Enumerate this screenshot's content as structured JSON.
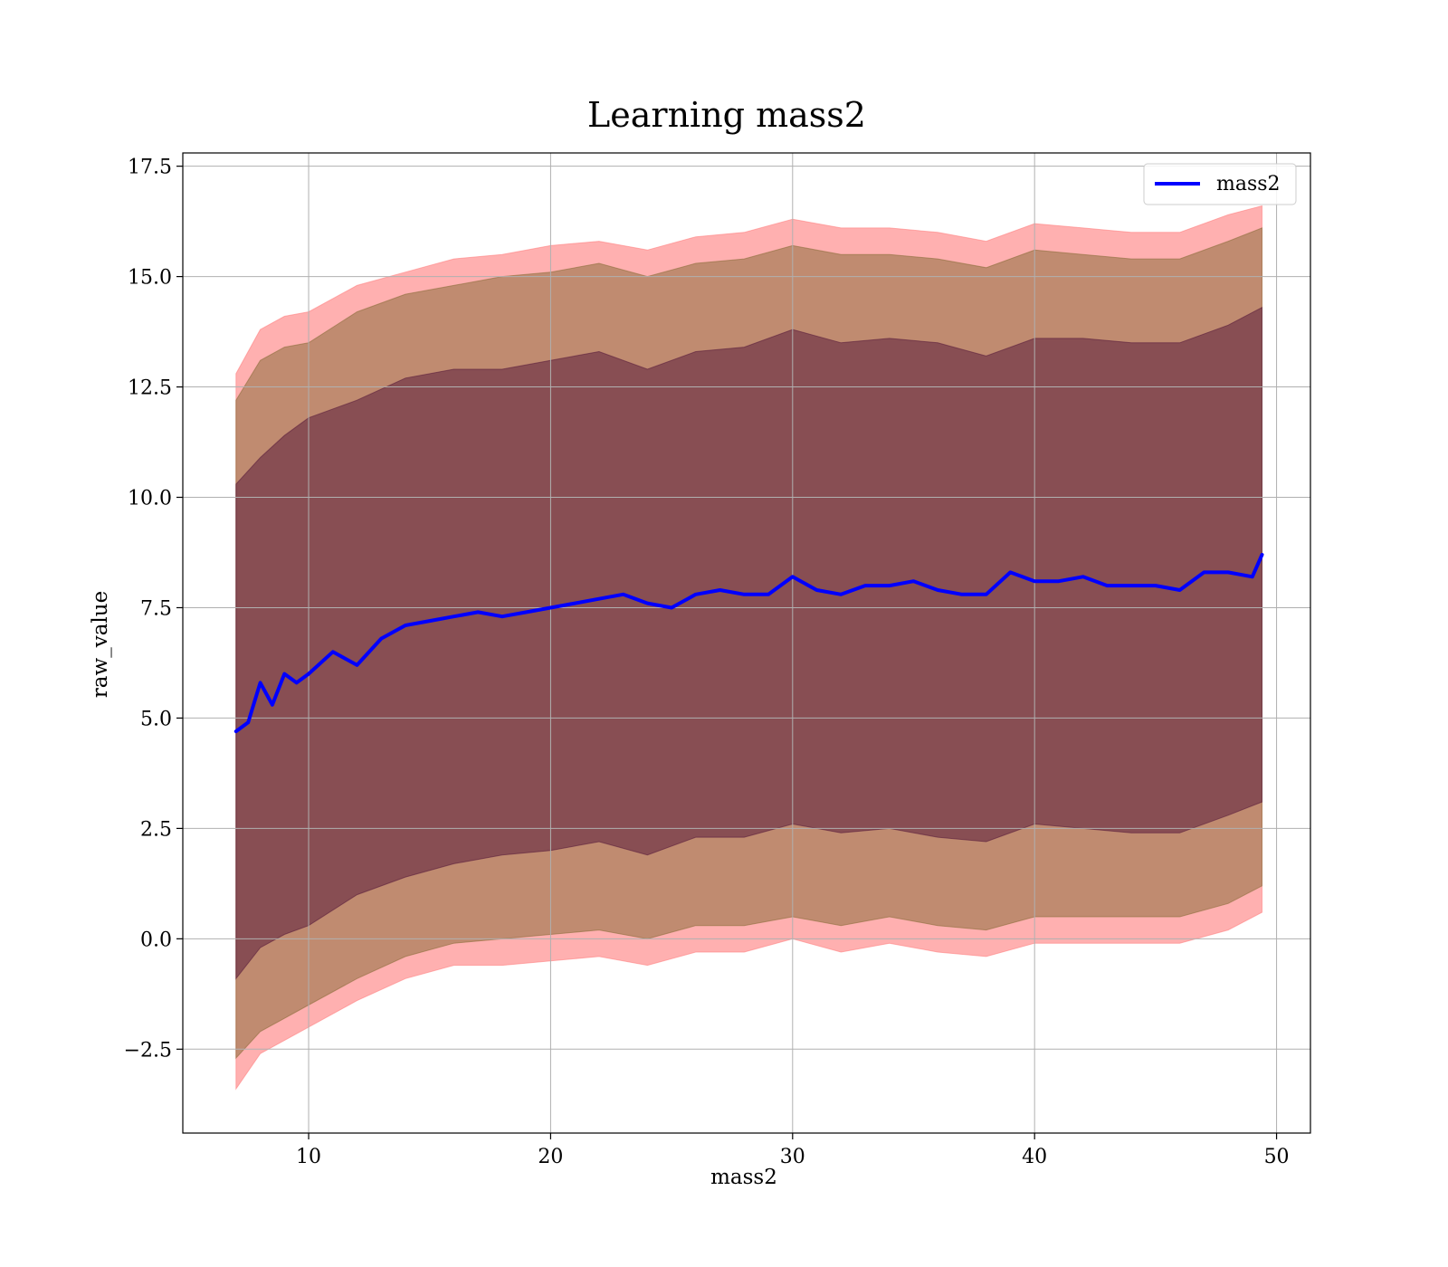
{
  "chart_data": {
    "type": "line",
    "title": "Learning mass2",
    "xlabel": "mass2",
    "ylabel": "raw_value",
    "xlim": [
      4.8,
      51.4
    ],
    "ylim": [
      -4.4,
      17.8
    ],
    "xticks": [
      10,
      20,
      30,
      40,
      50
    ],
    "yticks": [
      -2.5,
      0.0,
      2.5,
      5.0,
      7.5,
      10.0,
      12.5,
      15.0,
      17.5
    ],
    "xtick_labels": [
      "10",
      "20",
      "30",
      "40",
      "50"
    ],
    "ytick_labels": [
      "−2.5",
      "0.0",
      "2.5",
      "5.0",
      "7.5",
      "10.0",
      "12.5",
      "15.0",
      "17.5"
    ],
    "grid": true,
    "legend": {
      "placement": "top-right",
      "entries": [
        "mass2"
      ]
    },
    "colors": {
      "line": "#0000ff",
      "band_outer": "#ff8080",
      "band_middle": "#8c6e3c",
      "band_inner": "#5a1e3c"
    },
    "series": [
      {
        "name": "mass2",
        "x": [
          7.0,
          7.5,
          8.0,
          8.5,
          9.0,
          9.5,
          10.0,
          11.0,
          12.0,
          13.0,
          14.0,
          15.0,
          16.0,
          17.0,
          18.0,
          19.0,
          20.0,
          21.0,
          22.0,
          23.0,
          24.0,
          25.0,
          26.0,
          27.0,
          28.0,
          29.0,
          30.0,
          31.0,
          32.0,
          33.0,
          34.0,
          35.0,
          36.0,
          37.0,
          38.0,
          39.0,
          40.0,
          41.0,
          42.0,
          43.0,
          44.0,
          45.0,
          46.0,
          47.0,
          48.0,
          49.0,
          49.4
        ],
        "y": [
          4.7,
          4.9,
          5.8,
          5.3,
          6.0,
          5.8,
          6.0,
          6.5,
          6.2,
          6.8,
          7.1,
          7.2,
          7.3,
          7.4,
          7.3,
          7.4,
          7.5,
          7.6,
          7.7,
          7.8,
          7.6,
          7.5,
          7.8,
          7.9,
          7.8,
          7.8,
          8.2,
          7.9,
          7.8,
          8.0,
          8.0,
          8.1,
          7.9,
          7.8,
          7.8,
          8.3,
          8.1,
          8.1,
          8.2,
          8.0,
          8.0,
          8.0,
          7.9,
          8.3,
          8.3,
          8.2,
          8.7
        ]
      }
    ],
    "bands": [
      {
        "x": [
          7.0,
          8.0,
          9.0,
          10.0,
          12.0,
          14.0,
          16.0,
          18.0,
          20.0,
          22.0,
          24.0,
          26.0,
          28.0,
          30.0,
          32.0,
          34.0,
          36.0,
          38.0,
          40.0,
          42.0,
          44.0,
          46.0,
          48.0,
          49.4
        ],
        "lower": [
          -3.4,
          -2.6,
          -2.3,
          -2.0,
          -1.4,
          -0.9,
          -0.6,
          -0.6,
          -0.5,
          -0.4,
          -0.6,
          -0.3,
          -0.3,
          0.0,
          -0.3,
          -0.1,
          -0.3,
          -0.4,
          -0.1,
          -0.1,
          -0.1,
          -0.1,
          0.2,
          0.6
        ],
        "upper": [
          12.8,
          13.8,
          14.1,
          14.2,
          14.8,
          15.1,
          15.4,
          15.5,
          15.7,
          15.8,
          15.6,
          15.9,
          16.0,
          16.3,
          16.1,
          16.1,
          16.0,
          15.8,
          16.2,
          16.1,
          16.0,
          16.0,
          16.4,
          16.6
        ]
      },
      {
        "x": [
          7.0,
          8.0,
          9.0,
          10.0,
          12.0,
          14.0,
          16.0,
          18.0,
          20.0,
          22.0,
          24.0,
          26.0,
          28.0,
          30.0,
          32.0,
          34.0,
          36.0,
          38.0,
          40.0,
          42.0,
          44.0,
          46.0,
          48.0,
          49.4
        ],
        "lower": [
          -2.7,
          -2.1,
          -1.8,
          -1.5,
          -0.9,
          -0.4,
          -0.1,
          0.0,
          0.1,
          0.2,
          0.0,
          0.3,
          0.3,
          0.5,
          0.3,
          0.5,
          0.3,
          0.2,
          0.5,
          0.5,
          0.5,
          0.5,
          0.8,
          1.2
        ],
        "upper": [
          12.2,
          13.1,
          13.4,
          13.5,
          14.2,
          14.6,
          14.8,
          15.0,
          15.1,
          15.3,
          15.0,
          15.3,
          15.4,
          15.7,
          15.5,
          15.5,
          15.4,
          15.2,
          15.6,
          15.5,
          15.4,
          15.4,
          15.8,
          16.1
        ]
      },
      {
        "x": [
          7.0,
          8.0,
          9.0,
          10.0,
          12.0,
          14.0,
          16.0,
          18.0,
          20.0,
          22.0,
          24.0,
          26.0,
          28.0,
          30.0,
          32.0,
          34.0,
          36.0,
          38.0,
          40.0,
          42.0,
          44.0,
          46.0,
          48.0,
          49.4
        ],
        "lower": [
          -0.9,
          -0.2,
          0.1,
          0.3,
          1.0,
          1.4,
          1.7,
          1.9,
          2.0,
          2.2,
          1.9,
          2.3,
          2.3,
          2.6,
          2.4,
          2.5,
          2.3,
          2.2,
          2.6,
          2.5,
          2.4,
          2.4,
          2.8,
          3.1
        ],
        "upper": [
          10.3,
          10.9,
          11.4,
          11.8,
          12.2,
          12.7,
          12.9,
          12.9,
          13.1,
          13.3,
          12.9,
          13.3,
          13.4,
          13.8,
          13.5,
          13.6,
          13.5,
          13.2,
          13.6,
          13.6,
          13.5,
          13.5,
          13.9,
          14.3
        ]
      }
    ]
  }
}
